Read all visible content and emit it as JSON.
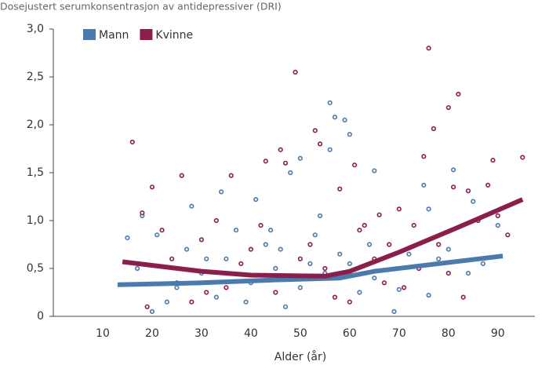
{
  "chart_data": {
    "type": "scatter",
    "title": "Dosejustert serumkonsentrasjon av antidepressiver (DRI)",
    "x_label": "Alder (år)",
    "xlim": [
      0,
      97.5
    ],
    "xticks": [
      10,
      20,
      30,
      40,
      50,
      60,
      70,
      80,
      90
    ],
    "ylim": [
      0,
      3
    ],
    "yticks": [
      {
        "value": 0,
        "label": "0"
      },
      {
        "value": 0.5,
        "label": "0,5"
      },
      {
        "value": 1,
        "label": "1,0"
      },
      {
        "value": 1.5,
        "label": "1,5"
      },
      {
        "value": 2,
        "label": "2,0"
      },
      {
        "value": 2.5,
        "label": "2,5"
      },
      {
        "value": 3,
        "label": "3,0"
      }
    ],
    "legend": "top-left",
    "series": [
      {
        "name": "Mann",
        "color": "#4b7aac",
        "x": [
          56,
          57,
          59,
          60,
          56,
          48,
          50,
          81,
          65,
          41,
          34,
          28,
          18,
          15,
          21,
          75,
          76,
          85,
          90,
          70,
          76,
          69,
          20,
          23,
          30,
          35,
          40,
          45,
          50,
          55,
          60,
          65,
          72,
          80,
          84,
          27,
          37,
          43,
          53,
          62,
          33,
          47,
          58,
          25,
          39,
          52,
          44,
          64,
          78,
          87,
          17,
          31,
          46,
          54
        ],
        "values": [
          2.23,
          2.08,
          2.05,
          1.9,
          1.74,
          1.5,
          1.65,
          1.53,
          1.52,
          1.22,
          1.3,
          1.15,
          1.05,
          0.82,
          0.85,
          1.37,
          1.12,
          1.2,
          0.95,
          0.28,
          0.22,
          0.05,
          0.05,
          0.15,
          0.45,
          0.6,
          0.35,
          0.5,
          0.3,
          0.45,
          0.55,
          0.4,
          0.65,
          0.7,
          0.45,
          0.7,
          0.9,
          0.75,
          0.85,
          0.25,
          0.2,
          0.1,
          0.65,
          0.3,
          0.15,
          0.55,
          0.9,
          0.75,
          0.6,
          0.55,
          0.5,
          0.6,
          0.7,
          1.05
        ],
        "trend_x": [
          13,
          30,
          45,
          58,
          65,
          91
        ],
        "trend_values": [
          0.33,
          0.35,
          0.38,
          0.4,
          0.47,
          0.63
        ]
      },
      {
        "name": "Kvinne",
        "color": "#8b1e4b",
        "x": [
          16,
          20,
          26,
          49,
          46,
          53,
          54,
          76,
          77,
          80,
          82,
          89,
          95,
          75,
          61,
          43,
          47,
          36,
          81,
          88,
          90,
          84,
          73,
          70,
          66,
          58,
          62,
          83,
          71,
          22,
          18,
          30,
          40,
          50,
          55,
          35,
          25,
          45,
          65,
          78,
          86,
          92,
          19,
          28,
          33,
          60,
          67,
          74,
          57,
          42,
          52,
          38,
          48,
          24,
          80,
          68,
          63,
          31
        ],
        "values": [
          1.82,
          1.35,
          1.47,
          2.55,
          1.74,
          1.94,
          1.8,
          2.8,
          1.96,
          2.18,
          2.32,
          1.63,
          1.66,
          1.67,
          1.58,
          1.62,
          1.6,
          1.47,
          1.35,
          1.37,
          1.05,
          1.31,
          0.95,
          1.12,
          1.06,
          1.33,
          0.9,
          0.2,
          0.3,
          0.9,
          1.08,
          0.8,
          0.7,
          0.6,
          0.5,
          0.3,
          0.35,
          0.25,
          0.6,
          0.75,
          1.0,
          0.85,
          0.1,
          0.15,
          1.0,
          0.15,
          0.35,
          0.5,
          0.2,
          0.95,
          0.75,
          0.55,
          0.4,
          0.6,
          0.45,
          0.75,
          0.95,
          0.25
        ],
        "trend_x": [
          14,
          30,
          40,
          55,
          60,
          70,
          82,
          95
        ],
        "trend_values": [
          0.57,
          0.47,
          0.43,
          0.42,
          0.47,
          0.67,
          0.93,
          1.22
        ]
      }
    ]
  }
}
